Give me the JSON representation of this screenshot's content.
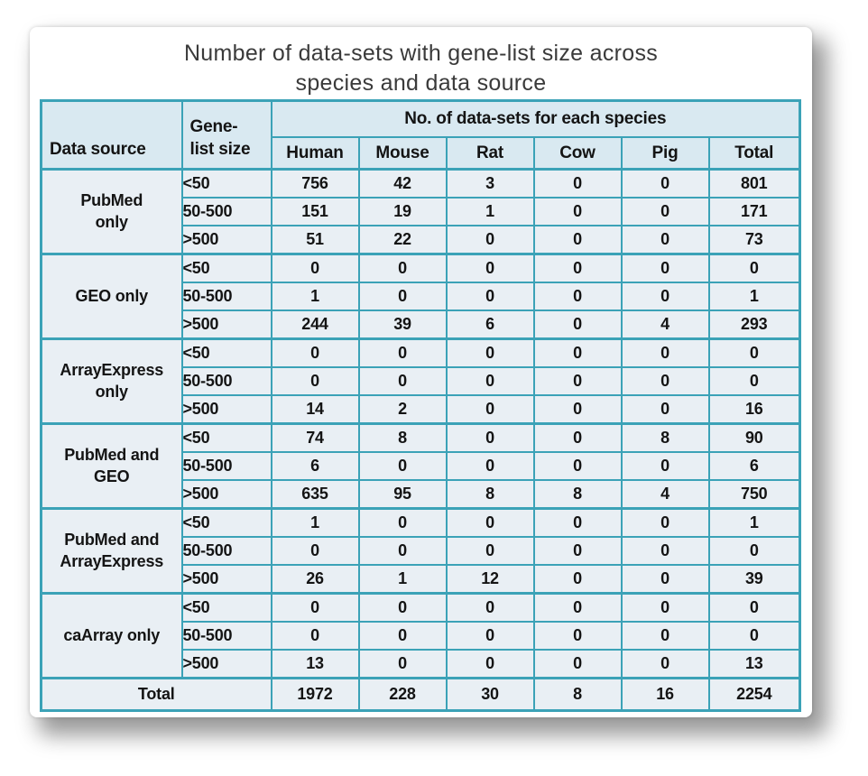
{
  "title": "Number of data-sets with gene-list size across\nspecies and data source",
  "table": {
    "header": {
      "data_source": "Data source",
      "gene_list_size": "Gene-\nlist size",
      "species_group": "No. of data-sets for each species",
      "species": [
        "Human",
        "Mouse",
        "Rat",
        "Cow",
        "Pig",
        "Total"
      ]
    },
    "groups": [
      {
        "source": "PubMed\nonly",
        "rows": [
          {
            "size": "<50",
            "values": [
              "756",
              "42",
              "3",
              "0",
              "0",
              "801"
            ]
          },
          {
            "size": "50-500",
            "values": [
              "151",
              "19",
              "1",
              "0",
              "0",
              "171"
            ]
          },
          {
            "size": ">500",
            "values": [
              "51",
              "22",
              "0",
              "0",
              "0",
              "73"
            ]
          }
        ]
      },
      {
        "source": "GEO only",
        "rows": [
          {
            "size": "<50",
            "values": [
              "0",
              "0",
              "0",
              "0",
              "0",
              "0"
            ]
          },
          {
            "size": "50-500",
            "values": [
              "1",
              "0",
              "0",
              "0",
              "0",
              "1"
            ]
          },
          {
            "size": ">500",
            "values": [
              "244",
              "39",
              "6",
              "0",
              "4",
              "293"
            ]
          }
        ]
      },
      {
        "source": "ArrayExpress\nonly",
        "rows": [
          {
            "size": "<50",
            "values": [
              "0",
              "0",
              "0",
              "0",
              "0",
              "0"
            ]
          },
          {
            "size": "50-500",
            "values": [
              "0",
              "0",
              "0",
              "0",
              "0",
              "0"
            ]
          },
          {
            "size": ">500",
            "values": [
              "14",
              "2",
              "0",
              "0",
              "0",
              "16"
            ]
          }
        ]
      },
      {
        "source": "PubMed and\nGEO",
        "rows": [
          {
            "size": "<50",
            "values": [
              "74",
              "8",
              "0",
              "0",
              "8",
              "90"
            ]
          },
          {
            "size": "50-500",
            "values": [
              "6",
              "0",
              "0",
              "0",
              "0",
              "6"
            ]
          },
          {
            "size": ">500",
            "values": [
              "635",
              "95",
              "8",
              "8",
              "4",
              "750"
            ]
          }
        ]
      },
      {
        "source": "PubMed and\nArrayExpress",
        "rows": [
          {
            "size": "<50",
            "values": [
              "1",
              "0",
              "0",
              "0",
              "0",
              "1"
            ]
          },
          {
            "size": "50-500",
            "values": [
              "0",
              "0",
              "0",
              "0",
              "0",
              "0"
            ]
          },
          {
            "size": ">500",
            "values": [
              "26",
              "1",
              "12",
              "0",
              "0",
              "39"
            ]
          }
        ]
      },
      {
        "source": "caArray only",
        "rows": [
          {
            "size": "<50",
            "values": [
              "0",
              "0",
              "0",
              "0",
              "0",
              "0"
            ]
          },
          {
            "size": "50-500",
            "values": [
              "0",
              "0",
              "0",
              "0",
              "0",
              "0"
            ]
          },
          {
            "size": ">500",
            "values": [
              "13",
              "0",
              "0",
              "0",
              "0",
              "13"
            ]
          }
        ]
      }
    ],
    "total_row": {
      "label": "Total",
      "values": [
        "1972",
        "228",
        "30",
        "8",
        "16",
        "2254"
      ]
    }
  },
  "colors": {
    "border": "#3ba2b7",
    "header_fill": "#d9e9f1",
    "body_fill": "#e9eff4",
    "text": "#141414",
    "title": "#3a3a3a"
  },
  "chart_data": {
    "type": "table",
    "title": "Number of data-sets with gene-list size across species and data source",
    "columns": [
      "Data source",
      "Gene-list size",
      "Human",
      "Mouse",
      "Rat",
      "Cow",
      "Pig",
      "Total"
    ],
    "rows": [
      [
        "PubMed only",
        "<50",
        756,
        42,
        3,
        0,
        0,
        801
      ],
      [
        "PubMed only",
        "50-500",
        151,
        19,
        1,
        0,
        0,
        171
      ],
      [
        "PubMed only",
        ">500",
        51,
        22,
        0,
        0,
        0,
        73
      ],
      [
        "GEO only",
        "<50",
        0,
        0,
        0,
        0,
        0,
        0
      ],
      [
        "GEO only",
        "50-500",
        1,
        0,
        0,
        0,
        0,
        1
      ],
      [
        "GEO only",
        ">500",
        244,
        39,
        6,
        0,
        4,
        293
      ],
      [
        "ArrayExpress only",
        "<50",
        0,
        0,
        0,
        0,
        0,
        0
      ],
      [
        "ArrayExpress only",
        "50-500",
        0,
        0,
        0,
        0,
        0,
        0
      ],
      [
        "ArrayExpress only",
        ">500",
        14,
        2,
        0,
        0,
        0,
        16
      ],
      [
        "PubMed and GEO",
        "<50",
        74,
        8,
        0,
        0,
        8,
        90
      ],
      [
        "PubMed and GEO",
        "50-500",
        6,
        0,
        0,
        0,
        0,
        6
      ],
      [
        "PubMed and GEO",
        ">500",
        635,
        95,
        8,
        8,
        4,
        750
      ],
      [
        "PubMed and ArrayExpress",
        "<50",
        1,
        0,
        0,
        0,
        0,
        1
      ],
      [
        "PubMed and ArrayExpress",
        "50-500",
        0,
        0,
        0,
        0,
        0,
        0
      ],
      [
        "PubMed and ArrayExpress",
        ">500",
        26,
        1,
        12,
        0,
        0,
        39
      ],
      [
        "caArray only",
        "<50",
        0,
        0,
        0,
        0,
        0,
        0
      ],
      [
        "caArray only",
        "50-500",
        0,
        0,
        0,
        0,
        0,
        0
      ],
      [
        "caArray only",
        ">500",
        13,
        0,
        0,
        0,
        0,
        13
      ],
      [
        "Total",
        "",
        1972,
        228,
        30,
        8,
        16,
        2254
      ]
    ]
  }
}
